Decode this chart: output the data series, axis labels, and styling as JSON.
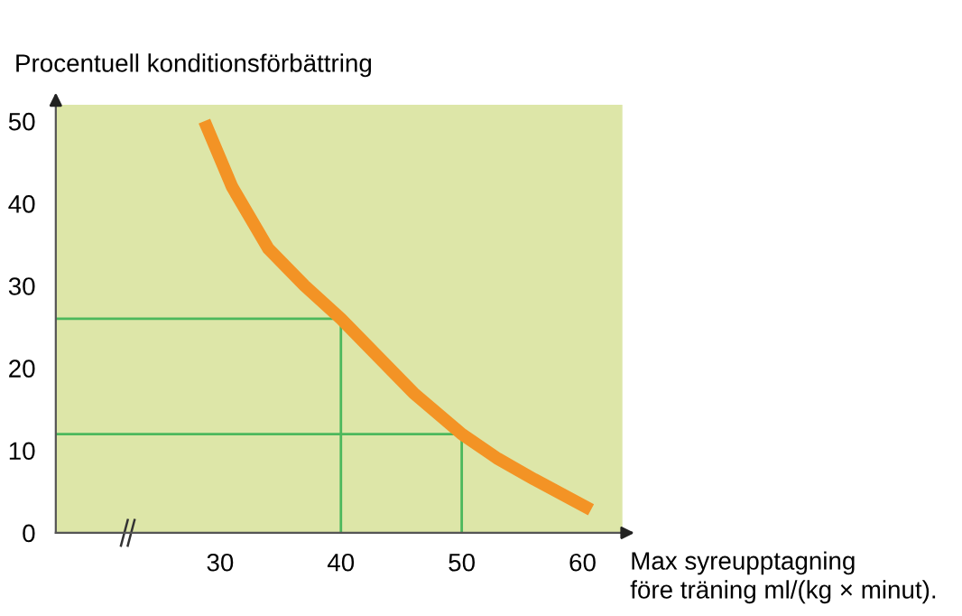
{
  "chart_data": {
    "type": "line",
    "ylabel": "Procentuell konditionsförbättring",
    "xlabel": "Max syreupptagning\nföre träning ml/(kg × minut).",
    "series": [
      {
        "color": "#f39325",
        "x": [
          28.7,
          31,
          34,
          37,
          40,
          43,
          46,
          50,
          53,
          56,
          60.7
        ],
        "values": [
          50,
          42,
          34.5,
          30,
          26,
          21.5,
          17,
          12,
          9,
          6.5,
          2.8
        ]
      },
      {
        "color": "#4cb85c",
        "x": [
          40,
          40,
          16.4
        ],
        "values": [
          0,
          26,
          26
        ]
      },
      {
        "color": "#4cb85c",
        "x": [
          50,
          50,
          16.4
        ],
        "values": [
          0,
          12,
          12
        ]
      }
    ],
    "xlim": [
      16.4,
      63.3
    ],
    "ylim": [
      0,
      52
    ],
    "xticks": [
      30,
      40,
      50,
      60
    ],
    "yticks": [
      0,
      10,
      20,
      30,
      40,
      50
    ],
    "grid": false
  }
}
